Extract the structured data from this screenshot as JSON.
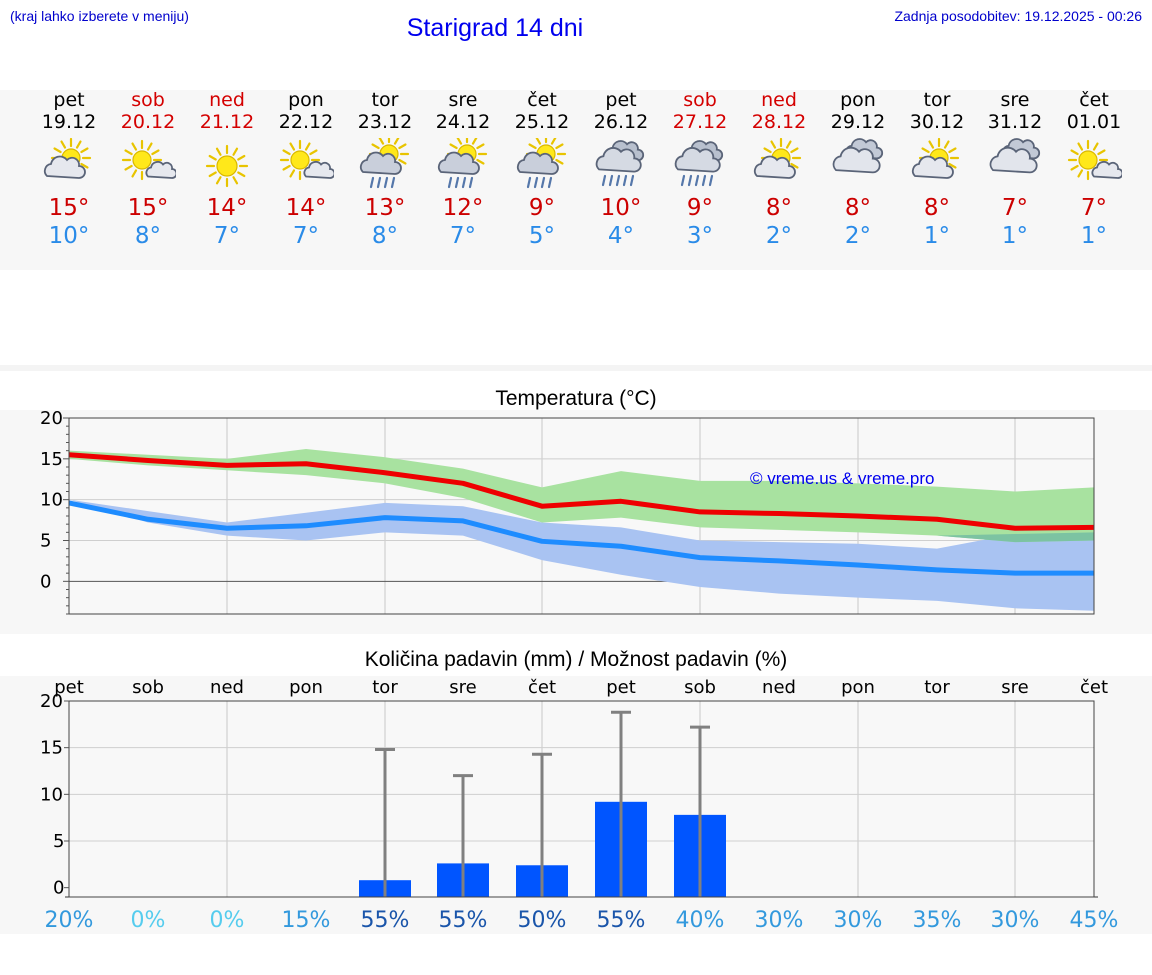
{
  "header": {
    "hint": "(kraj lahko izberete v meniju)",
    "title": "Starigrad 14 dni",
    "updated": "Zadnja posodobitev: 19.12.2025 - 00:26"
  },
  "days": [
    {
      "name": "pet",
      "date": "19.12",
      "weekend": false,
      "icon": "sun-cloud-icon",
      "max": "15°",
      "min": "10°"
    },
    {
      "name": "sob",
      "date": "20.12",
      "weekend": true,
      "icon": "sun-small-cloud-icon",
      "max": "15°",
      "min": "8°"
    },
    {
      "name": "ned",
      "date": "21.12",
      "weekend": true,
      "icon": "sun-icon",
      "max": "14°",
      "min": "7°"
    },
    {
      "name": "pon",
      "date": "22.12",
      "weekend": false,
      "icon": "sun-small-cloud-icon",
      "max": "14°",
      "min": "7°"
    },
    {
      "name": "tor",
      "date": "23.12",
      "weekend": false,
      "icon": "sun-cloud-rain-icon",
      "max": "13°",
      "min": "8°"
    },
    {
      "name": "sre",
      "date": "24.12",
      "weekend": false,
      "icon": "sun-cloud-rain-icon",
      "max": "12°",
      "min": "7°"
    },
    {
      "name": "čet",
      "date": "25.12",
      "weekend": false,
      "icon": "sun-cloud-rain-icon",
      "max": "9°",
      "min": "5°"
    },
    {
      "name": "pet",
      "date": "26.12",
      "weekend": false,
      "icon": "cloud-rain-icon",
      "max": "10°",
      "min": "4°"
    },
    {
      "name": "sob",
      "date": "27.12",
      "weekend": true,
      "icon": "cloud-rain-icon",
      "max": "9°",
      "min": "3°"
    },
    {
      "name": "ned",
      "date": "28.12",
      "weekend": true,
      "icon": "sun-cloud-icon",
      "max": "8°",
      "min": "2°"
    },
    {
      "name": "pon",
      "date": "29.12",
      "weekend": false,
      "icon": "cloud-icon",
      "max": "8°",
      "min": "2°"
    },
    {
      "name": "tor",
      "date": "30.12",
      "weekend": false,
      "icon": "sun-cloud-icon",
      "max": "8°",
      "min": "1°"
    },
    {
      "name": "sre",
      "date": "31.12",
      "weekend": false,
      "icon": "cloud-icon",
      "max": "7°",
      "min": "1°"
    },
    {
      "name": "čet",
      "date": "01.01",
      "weekend": false,
      "icon": "sun-small-cloud-icon",
      "max": "7°",
      "min": "1°"
    }
  ],
  "colors": {
    "max_line": "#ee0000",
    "min_line": "#1e8cff",
    "max_band": "#a8e2a0",
    "min_band": "#a9c3f2",
    "overlap_band": "#7cc3a2",
    "bar": "#0055ff",
    "whisker": "#808080"
  },
  "chart_data": [
    {
      "type": "line",
      "title": "Temperatura (°C)",
      "watermark": "© vreme.us & vreme.pro",
      "ylim": [
        -4,
        20
      ],
      "yticks": [
        0,
        5,
        10,
        15,
        20
      ],
      "x": [
        0,
        1,
        2,
        3,
        4,
        5,
        6,
        7,
        8,
        9,
        10,
        11,
        12,
        13
      ],
      "series": [
        {
          "name": "max",
          "values": [
            15.5,
            14.8,
            14.2,
            14.4,
            13.3,
            12.0,
            9.2,
            9.8,
            8.5,
            8.3,
            8.0,
            7.6,
            6.5,
            6.6
          ]
        },
        {
          "name": "min",
          "values": [
            9.6,
            7.6,
            6.5,
            6.8,
            7.8,
            7.4,
            4.9,
            4.3,
            2.9,
            2.5,
            2.0,
            1.4,
            1.0,
            1.0
          ]
        },
        {
          "name": "max_range_low",
          "values": [
            15.0,
            14.2,
            13.6,
            13.0,
            12.0,
            10.2,
            7.2,
            7.8,
            6.6,
            6.3,
            6.0,
            5.6,
            4.8,
            5.0
          ]
        },
        {
          "name": "max_range_high",
          "values": [
            16.0,
            15.5,
            15.0,
            16.2,
            15.2,
            13.8,
            11.5,
            13.5,
            12.3,
            12.3,
            12.0,
            11.6,
            11.0,
            11.5
          ]
        },
        {
          "name": "min_range_low",
          "values": [
            10.0,
            7.2,
            5.6,
            5.0,
            6.0,
            5.6,
            2.6,
            0.8,
            -0.7,
            -1.5,
            -2.0,
            -2.4,
            -3.3,
            -3.6
          ]
        },
        {
          "name": "min_range_high",
          "values": [
            10.0,
            8.6,
            7.2,
            8.4,
            9.6,
            9.2,
            7.2,
            6.6,
            5.0,
            4.8,
            4.6,
            4.0,
            5.8,
            6.0
          ]
        }
      ]
    },
    {
      "type": "bar",
      "title": "Količina padavin (mm) / Možnost padavin (%)",
      "ylim": [
        -1,
        20
      ],
      "yticks": [
        0,
        5,
        10,
        15,
        20
      ],
      "categories": [
        "pet",
        "sob",
        "ned",
        "pon",
        "tor",
        "sre",
        "čet",
        "pet",
        "sob",
        "ned",
        "pon",
        "tor",
        "sre",
        "čet"
      ],
      "values": [
        0,
        0,
        0,
        0,
        0.8,
        2.6,
        2.4,
        9.2,
        7.8,
        0,
        0,
        0,
        0,
        0
      ],
      "max_values": [
        0,
        0,
        0,
        0,
        14.8,
        12.0,
        14.3,
        18.8,
        17.2,
        0,
        0,
        0,
        0,
        0
      ],
      "probabilities": [
        "20%",
        "0%",
        "0%",
        "15%",
        "55%",
        "55%",
        "50%",
        "55%",
        "40%",
        "30%",
        "30%",
        "35%",
        "30%",
        "45%"
      ],
      "probability_colors": [
        "#3399dd",
        "#55ccee",
        "#55ccee",
        "#3399dd",
        "#1a55aa",
        "#1a55aa",
        "#1a55aa",
        "#1a55aa",
        "#3399dd",
        "#3399dd",
        "#3399dd",
        "#3399dd",
        "#3399dd",
        "#3399dd"
      ]
    }
  ]
}
